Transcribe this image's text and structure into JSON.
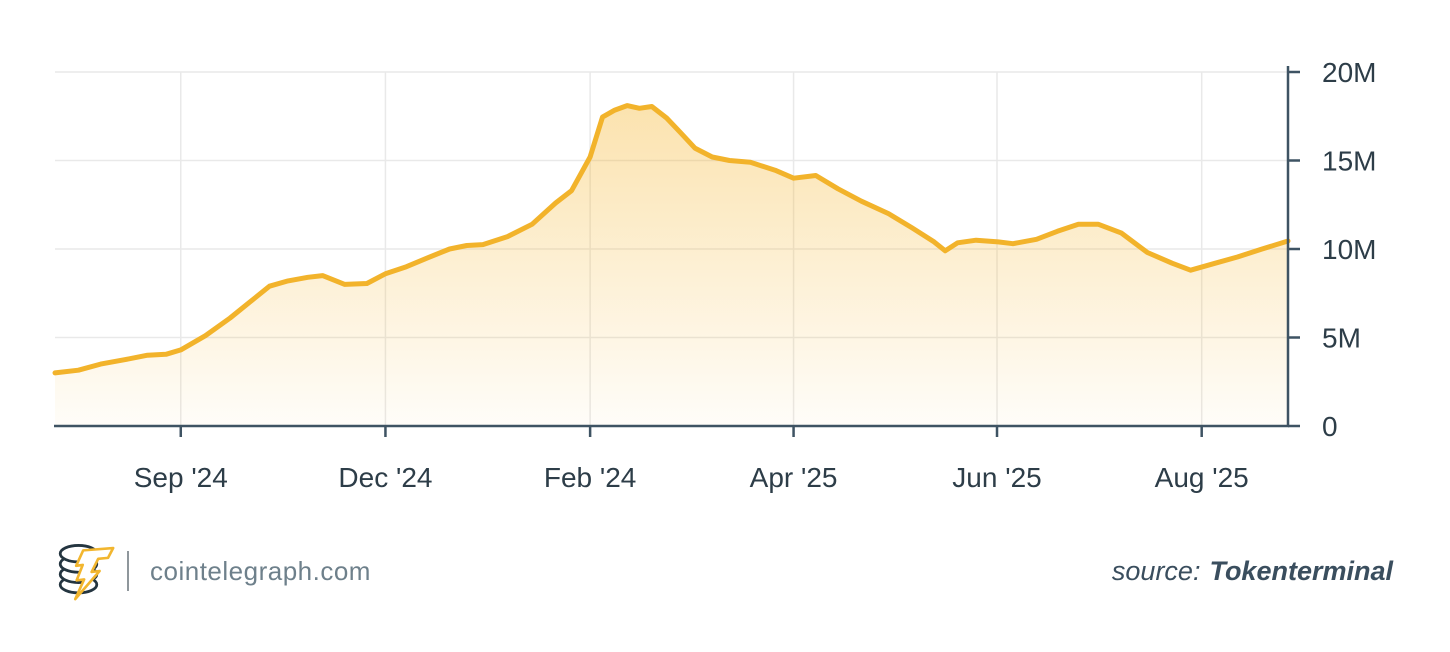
{
  "chart_data": {
    "type": "area",
    "title": "",
    "xlabel": "",
    "ylabel": "",
    "ylim": [
      0,
      20
    ],
    "unit": "M",
    "grid": true,
    "legend_position": "none",
    "line_color": "#F2B32B",
    "fill_color": "#F5B52D",
    "fill_opacity_top": 0.42,
    "fill_opacity_bottom": 0.03,
    "axis_color": "#3E5363",
    "gridline_color": "#E9E9E9",
    "label_color": "#2D3D48",
    "y_ticks": [
      {
        "value": 0,
        "label": "0"
      },
      {
        "value": 5,
        "label": "5M"
      },
      {
        "value": 10,
        "label": "10M"
      },
      {
        "value": 15,
        "label": "15M"
      },
      {
        "value": 20,
        "label": "20M"
      }
    ],
    "x_ticks": [
      {
        "pos": 0.102,
        "label": "Sep '24"
      },
      {
        "pos": 0.268,
        "label": "Dec '24"
      },
      {
        "pos": 0.434,
        "label": "Feb '24"
      },
      {
        "pos": 0.599,
        "label": "Apr '25"
      },
      {
        "pos": 0.764,
        "label": "Jun '25"
      },
      {
        "pos": 0.93,
        "label": "Aug '25"
      }
    ],
    "series": [
      {
        "name": "",
        "points": [
          [
            0.0,
            3.0
          ],
          [
            0.019,
            3.15
          ],
          [
            0.037,
            3.5
          ],
          [
            0.057,
            3.75
          ],
          [
            0.075,
            4.0
          ],
          [
            0.09,
            4.05
          ],
          [
            0.102,
            4.3
          ],
          [
            0.122,
            5.1
          ],
          [
            0.142,
            6.1
          ],
          [
            0.158,
            7.0
          ],
          [
            0.174,
            7.9
          ],
          [
            0.189,
            8.2
          ],
          [
            0.205,
            8.4
          ],
          [
            0.217,
            8.5
          ],
          [
            0.235,
            8.0
          ],
          [
            0.253,
            8.05
          ],
          [
            0.268,
            8.6
          ],
          [
            0.285,
            9.0
          ],
          [
            0.302,
            9.5
          ],
          [
            0.32,
            10.0
          ],
          [
            0.334,
            10.2
          ],
          [
            0.347,
            10.25
          ],
          [
            0.367,
            10.7
          ],
          [
            0.387,
            11.4
          ],
          [
            0.406,
            12.6
          ],
          [
            0.419,
            13.3
          ],
          [
            0.434,
            15.2
          ],
          [
            0.444,
            17.45
          ],
          [
            0.454,
            17.85
          ],
          [
            0.464,
            18.1
          ],
          [
            0.474,
            17.95
          ],
          [
            0.484,
            18.05
          ],
          [
            0.496,
            17.4
          ],
          [
            0.507,
            16.6
          ],
          [
            0.519,
            15.7
          ],
          [
            0.533,
            15.2
          ],
          [
            0.547,
            15.0
          ],
          [
            0.564,
            14.9
          ],
          [
            0.584,
            14.45
          ],
          [
            0.599,
            14.0
          ],
          [
            0.617,
            14.15
          ],
          [
            0.635,
            13.4
          ],
          [
            0.654,
            12.7
          ],
          [
            0.676,
            12.0
          ],
          [
            0.695,
            11.2
          ],
          [
            0.713,
            10.4
          ],
          [
            0.722,
            9.9
          ],
          [
            0.732,
            10.35
          ],
          [
            0.747,
            10.5
          ],
          [
            0.765,
            10.4
          ],
          [
            0.777,
            10.3
          ],
          [
            0.796,
            10.55
          ],
          [
            0.813,
            11.0
          ],
          [
            0.83,
            11.4
          ],
          [
            0.846,
            11.4
          ],
          [
            0.865,
            10.9
          ],
          [
            0.886,
            9.8
          ],
          [
            0.906,
            9.2
          ],
          [
            0.921,
            8.8
          ],
          [
            0.941,
            9.2
          ],
          [
            0.959,
            9.55
          ],
          [
            0.979,
            10.0
          ],
          [
            1.0,
            10.45
          ]
        ]
      }
    ]
  },
  "footer": {
    "site": "cointelegraph.com",
    "source_label": "source:",
    "source_value": "Tokenterminal",
    "logo_coin_color": "#243540",
    "logo_bolt_color": "#F2B62F"
  }
}
